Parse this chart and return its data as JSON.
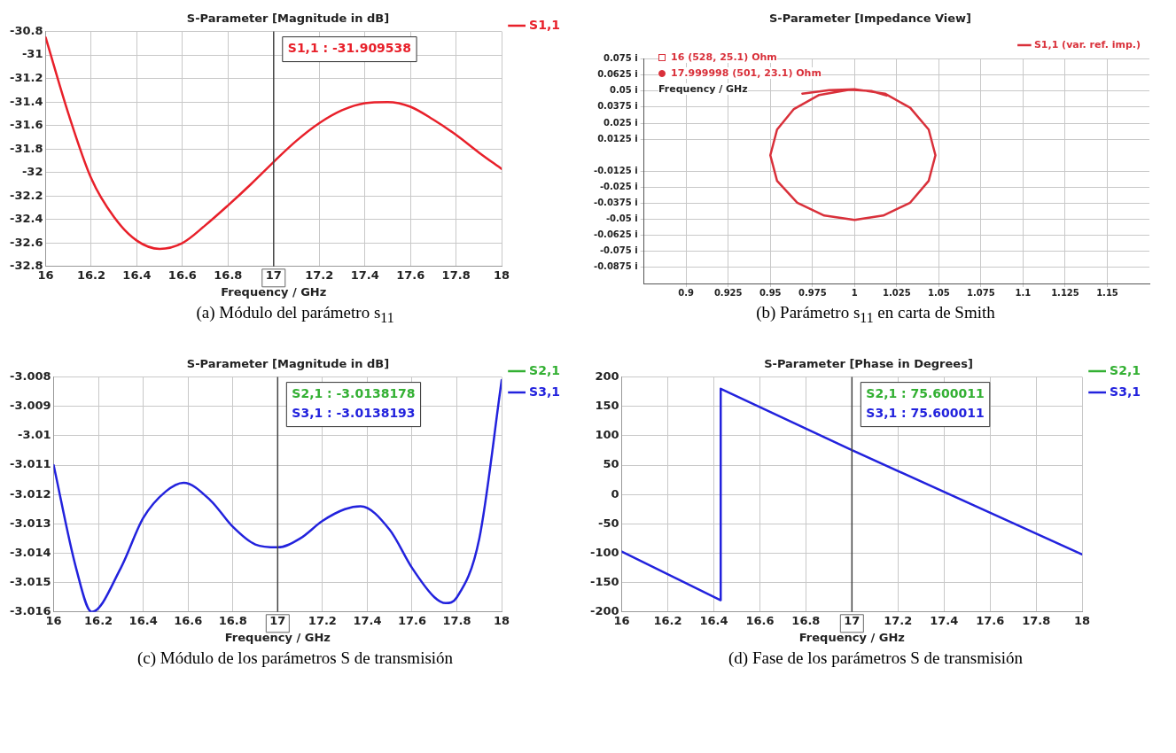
{
  "chart_data": [
    {
      "type": "line",
      "title": "S-Parameter [Magnitude in dB]",
      "xlabel": "Frequency / GHz",
      "xlim": [
        16,
        18
      ],
      "xticks": [
        16,
        16.2,
        16.4,
        16.6,
        16.8,
        17,
        17.2,
        17.4,
        17.6,
        17.8,
        18
      ],
      "ylim": [
        -32.8,
        -30.8
      ],
      "yticks": [
        -32.8,
        -32.6,
        -32.4,
        -32.2,
        -32,
        -31.8,
        -31.6,
        -31.4,
        -31.2,
        -31,
        -30.8
      ],
      "grid": true,
      "legend": "right",
      "line_style": "solid",
      "marker": "none",
      "x": [
        16,
        16.1,
        16.2,
        16.3,
        16.4,
        16.5,
        16.6,
        16.7,
        16.8,
        16.9,
        17,
        17.1,
        17.2,
        17.3,
        17.4,
        17.5,
        17.6,
        17.7,
        17.8,
        17.9,
        18
      ],
      "series": [
        {
          "name": "S1,1",
          "color": "#e8202a",
          "values": [
            -30.85,
            -31.5,
            -32.05,
            -32.38,
            -32.58,
            -32.65,
            -32.6,
            -32.45,
            -32.28,
            -32.1,
            -31.91,
            -31.73,
            -31.58,
            -31.47,
            -31.41,
            -31.4,
            -31.44,
            -31.55,
            -31.68,
            -31.83,
            -31.97
          ]
        }
      ],
      "ref_lines": [
        {
          "axis": "x",
          "value": 17,
          "color": "#444444"
        }
      ],
      "annotations": [
        "S1,1 : -31.909538",
        "(a) Módulo del parámetro s$_{11}$"
      ]
    },
    {
      "type": "line",
      "title": "S-Parameter [Impedance View]",
      "xlim": [
        0.875,
        1.175
      ],
      "xticks": [
        0.9,
        0.925,
        0.95,
        0.975,
        1,
        1.025,
        1.05,
        1.075,
        1.1,
        1.125,
        1.15
      ],
      "ylim": [
        -0.1,
        0.075
      ],
      "yticks": [
        {
          "value": 0.075,
          "label": "0.075 i"
        },
        {
          "value": 0.0625,
          "label": "0.0625 i"
        },
        {
          "value": 0.05,
          "label": "0.05 i"
        },
        {
          "value": 0.0375,
          "label": "0.0375 i"
        },
        {
          "value": 0.025,
          "label": "0.025 i"
        },
        {
          "value": 0.0125,
          "label": "0.0125 i"
        },
        {
          "value": -0.0125,
          "label": "-0.0125 i"
        },
        {
          "value": -0.025,
          "label": "-0.025 i"
        },
        {
          "value": -0.0375,
          "label": "-0.0375 i"
        },
        {
          "value": -0.05,
          "label": "-0.05 i"
        },
        {
          "value": -0.0625,
          "label": "-0.0625 i"
        },
        {
          "value": -0.075,
          "label": "-0.075 i"
        },
        {
          "value": -0.0875,
          "label": "-0.0875 i"
        }
      ],
      "grid": true,
      "legend": "top right",
      "line_style": "solid",
      "marker": "none",
      "series": [
        {
          "name": "S1,1 (var. ref. imp.)",
          "color": "#d9303a",
          "x": [
            0.969,
            0.985,
            1.0,
            1.018,
            1.033,
            1.044,
            1.048,
            1.044,
            1.033,
            1.017,
            1.0,
            0.982,
            0.966,
            0.954,
            0.95,
            0.954,
            0.964,
            0.979,
            0.997,
            1.01,
            1.019
          ],
          "values": [
            0.048,
            0.0508,
            0.0515,
            0.048,
            0.037,
            0.02,
            0,
            -0.02,
            -0.037,
            -0.047,
            -0.0505,
            -0.047,
            -0.037,
            -0.02,
            0,
            0.02,
            0.036,
            0.047,
            0.051,
            0.05,
            0.0465
          ]
        }
      ],
      "annotations": [
        "16  (528, 25.1) Ohm",
        "17.999998  (501, 23.1) Ohm",
        "Frequency / GHz",
        "(b) Parámetro s$_{11}$ en carta de Smith"
      ]
    },
    {
      "type": "line",
      "title": "S-Parameter [Magnitude in dB]",
      "xlabel": "Frequency / GHz",
      "xlim": [
        16,
        18
      ],
      "xticks": [
        16,
        16.2,
        16.4,
        16.6,
        16.8,
        17,
        17.2,
        17.4,
        17.6,
        17.8,
        18
      ],
      "ylim": [
        -3.016,
        -3.008
      ],
      "yticks": [
        -3.016,
        -3.015,
        -3.014,
        -3.013,
        -3.012,
        -3.011,
        -3.01,
        -3.009,
        -3.008
      ],
      "grid": true,
      "legend": "right",
      "line_style": "solid",
      "marker": "none",
      "x": [
        16,
        16.1,
        16.17,
        16.3,
        16.4,
        16.5,
        16.58,
        16.7,
        16.8,
        16.9,
        17,
        17.1,
        17.2,
        17.3,
        17.37,
        17.5,
        17.6,
        17.7,
        17.75,
        17.8,
        17.9,
        18
      ],
      "series": [
        {
          "name": "S2,1",
          "color": "#33b033",
          "values": [
            null,
            null,
            null,
            null,
            null,
            null,
            null,
            null,
            null,
            null,
            null,
            null,
            null,
            null,
            null,
            null,
            null,
            null,
            null,
            null,
            null,
            null
          ]
        },
        {
          "name": "S3,1",
          "color": "#2222dd",
          "values": [
            -3.011,
            -3.0145,
            -3.016,
            -3.0145,
            -3.0128,
            -3.0119,
            -3.0116,
            -3.0122,
            -3.0131,
            -3.0137,
            -3.0138,
            -3.0135,
            -3.0129,
            -3.0125,
            -3.0124,
            -3.0132,
            -3.0145,
            -3.0155,
            -3.0157,
            -3.0155,
            -3.0135,
            -3.0081
          ]
        }
      ],
      "ref_lines": [
        {
          "axis": "x",
          "value": 17,
          "color": "#444444"
        }
      ],
      "annotations": [
        "S2,1 : -3.0138178",
        "S3,1 : -3.0138193",
        "(c) Módulo de los parámetros S de transmisión"
      ]
    },
    {
      "type": "line",
      "title": "S-Parameter [Phase in Degrees]",
      "xlabel": "Frequency / GHz",
      "xlim": [
        16,
        18
      ],
      "xticks": [
        16,
        16.2,
        16.4,
        16.6,
        16.8,
        17,
        17.2,
        17.4,
        17.6,
        17.8,
        18
      ],
      "ylim": [
        -200,
        200
      ],
      "yticks": [
        -200,
        -150,
        -100,
        -50,
        0,
        50,
        100,
        150,
        200
      ],
      "grid": true,
      "legend": "right",
      "line_style": "solid",
      "marker": "none",
      "x": [
        16,
        16.43,
        16.43,
        17,
        18
      ],
      "series": [
        {
          "name": "S2,1",
          "color": "#33b033",
          "values": [
            null,
            null,
            null,
            null,
            null
          ]
        },
        {
          "name": "S3,1",
          "color": "#2222dd",
          "values": [
            -97,
            -180,
            180,
            75.6,
            -102
          ]
        }
      ],
      "ref_lines": [
        {
          "axis": "x",
          "value": 17,
          "color": "#444444"
        }
      ],
      "annotations": [
        "S2,1 : 75.600011",
        "S3,1 : 75.600011",
        "(d) Fase de los parámetros S de transmisión"
      ]
    }
  ]
}
